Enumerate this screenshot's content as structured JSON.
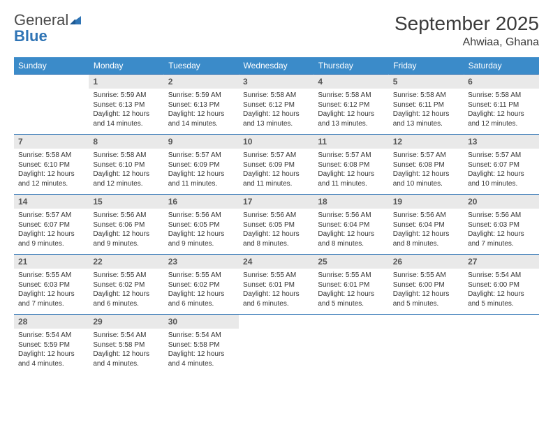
{
  "brand": {
    "word1": "General",
    "word2": "Blue"
  },
  "title": "September 2025",
  "location": "Ahwiaa, Ghana",
  "colors": {
    "header_bg": "#3b8bc9",
    "header_text": "#ffffff",
    "week_border": "#2f74b5",
    "daynum_bg": "#e9e9e9",
    "text": "#333333",
    "logo_gray": "#4a4a4a",
    "logo_blue": "#2f74b5"
  },
  "day_headers": [
    "Sunday",
    "Monday",
    "Tuesday",
    "Wednesday",
    "Thursday",
    "Friday",
    "Saturday"
  ],
  "weeks": [
    [
      {
        "n": "",
        "l1": "",
        "l2": "",
        "l3": "",
        "l4": ""
      },
      {
        "n": "1",
        "l1": "Sunrise: 5:59 AM",
        "l2": "Sunset: 6:13 PM",
        "l3": "Daylight: 12 hours",
        "l4": "and 14 minutes."
      },
      {
        "n": "2",
        "l1": "Sunrise: 5:59 AM",
        "l2": "Sunset: 6:13 PM",
        "l3": "Daylight: 12 hours",
        "l4": "and 14 minutes."
      },
      {
        "n": "3",
        "l1": "Sunrise: 5:58 AM",
        "l2": "Sunset: 6:12 PM",
        "l3": "Daylight: 12 hours",
        "l4": "and 13 minutes."
      },
      {
        "n": "4",
        "l1": "Sunrise: 5:58 AM",
        "l2": "Sunset: 6:12 PM",
        "l3": "Daylight: 12 hours",
        "l4": "and 13 minutes."
      },
      {
        "n": "5",
        "l1": "Sunrise: 5:58 AM",
        "l2": "Sunset: 6:11 PM",
        "l3": "Daylight: 12 hours",
        "l4": "and 13 minutes."
      },
      {
        "n": "6",
        "l1": "Sunrise: 5:58 AM",
        "l2": "Sunset: 6:11 PM",
        "l3": "Daylight: 12 hours",
        "l4": "and 12 minutes."
      }
    ],
    [
      {
        "n": "7",
        "l1": "Sunrise: 5:58 AM",
        "l2": "Sunset: 6:10 PM",
        "l3": "Daylight: 12 hours",
        "l4": "and 12 minutes."
      },
      {
        "n": "8",
        "l1": "Sunrise: 5:58 AM",
        "l2": "Sunset: 6:10 PM",
        "l3": "Daylight: 12 hours",
        "l4": "and 12 minutes."
      },
      {
        "n": "9",
        "l1": "Sunrise: 5:57 AM",
        "l2": "Sunset: 6:09 PM",
        "l3": "Daylight: 12 hours",
        "l4": "and 11 minutes."
      },
      {
        "n": "10",
        "l1": "Sunrise: 5:57 AM",
        "l2": "Sunset: 6:09 PM",
        "l3": "Daylight: 12 hours",
        "l4": "and 11 minutes."
      },
      {
        "n": "11",
        "l1": "Sunrise: 5:57 AM",
        "l2": "Sunset: 6:08 PM",
        "l3": "Daylight: 12 hours",
        "l4": "and 11 minutes."
      },
      {
        "n": "12",
        "l1": "Sunrise: 5:57 AM",
        "l2": "Sunset: 6:08 PM",
        "l3": "Daylight: 12 hours",
        "l4": "and 10 minutes."
      },
      {
        "n": "13",
        "l1": "Sunrise: 5:57 AM",
        "l2": "Sunset: 6:07 PM",
        "l3": "Daylight: 12 hours",
        "l4": "and 10 minutes."
      }
    ],
    [
      {
        "n": "14",
        "l1": "Sunrise: 5:57 AM",
        "l2": "Sunset: 6:07 PM",
        "l3": "Daylight: 12 hours",
        "l4": "and 9 minutes."
      },
      {
        "n": "15",
        "l1": "Sunrise: 5:56 AM",
        "l2": "Sunset: 6:06 PM",
        "l3": "Daylight: 12 hours",
        "l4": "and 9 minutes."
      },
      {
        "n": "16",
        "l1": "Sunrise: 5:56 AM",
        "l2": "Sunset: 6:05 PM",
        "l3": "Daylight: 12 hours",
        "l4": "and 9 minutes."
      },
      {
        "n": "17",
        "l1": "Sunrise: 5:56 AM",
        "l2": "Sunset: 6:05 PM",
        "l3": "Daylight: 12 hours",
        "l4": "and 8 minutes."
      },
      {
        "n": "18",
        "l1": "Sunrise: 5:56 AM",
        "l2": "Sunset: 6:04 PM",
        "l3": "Daylight: 12 hours",
        "l4": "and 8 minutes."
      },
      {
        "n": "19",
        "l1": "Sunrise: 5:56 AM",
        "l2": "Sunset: 6:04 PM",
        "l3": "Daylight: 12 hours",
        "l4": "and 8 minutes."
      },
      {
        "n": "20",
        "l1": "Sunrise: 5:56 AM",
        "l2": "Sunset: 6:03 PM",
        "l3": "Daylight: 12 hours",
        "l4": "and 7 minutes."
      }
    ],
    [
      {
        "n": "21",
        "l1": "Sunrise: 5:55 AM",
        "l2": "Sunset: 6:03 PM",
        "l3": "Daylight: 12 hours",
        "l4": "and 7 minutes."
      },
      {
        "n": "22",
        "l1": "Sunrise: 5:55 AM",
        "l2": "Sunset: 6:02 PM",
        "l3": "Daylight: 12 hours",
        "l4": "and 6 minutes."
      },
      {
        "n": "23",
        "l1": "Sunrise: 5:55 AM",
        "l2": "Sunset: 6:02 PM",
        "l3": "Daylight: 12 hours",
        "l4": "and 6 minutes."
      },
      {
        "n": "24",
        "l1": "Sunrise: 5:55 AM",
        "l2": "Sunset: 6:01 PM",
        "l3": "Daylight: 12 hours",
        "l4": "and 6 minutes."
      },
      {
        "n": "25",
        "l1": "Sunrise: 5:55 AM",
        "l2": "Sunset: 6:01 PM",
        "l3": "Daylight: 12 hours",
        "l4": "and 5 minutes."
      },
      {
        "n": "26",
        "l1": "Sunrise: 5:55 AM",
        "l2": "Sunset: 6:00 PM",
        "l3": "Daylight: 12 hours",
        "l4": "and 5 minutes."
      },
      {
        "n": "27",
        "l1": "Sunrise: 5:54 AM",
        "l2": "Sunset: 6:00 PM",
        "l3": "Daylight: 12 hours",
        "l4": "and 5 minutes."
      }
    ],
    [
      {
        "n": "28",
        "l1": "Sunrise: 5:54 AM",
        "l2": "Sunset: 5:59 PM",
        "l3": "Daylight: 12 hours",
        "l4": "and 4 minutes."
      },
      {
        "n": "29",
        "l1": "Sunrise: 5:54 AM",
        "l2": "Sunset: 5:58 PM",
        "l3": "Daylight: 12 hours",
        "l4": "and 4 minutes."
      },
      {
        "n": "30",
        "l1": "Sunrise: 5:54 AM",
        "l2": "Sunset: 5:58 PM",
        "l3": "Daylight: 12 hours",
        "l4": "and 4 minutes."
      },
      {
        "n": "",
        "l1": "",
        "l2": "",
        "l3": "",
        "l4": ""
      },
      {
        "n": "",
        "l1": "",
        "l2": "",
        "l3": "",
        "l4": ""
      },
      {
        "n": "",
        "l1": "",
        "l2": "",
        "l3": "",
        "l4": ""
      },
      {
        "n": "",
        "l1": "",
        "l2": "",
        "l3": "",
        "l4": ""
      }
    ]
  ]
}
